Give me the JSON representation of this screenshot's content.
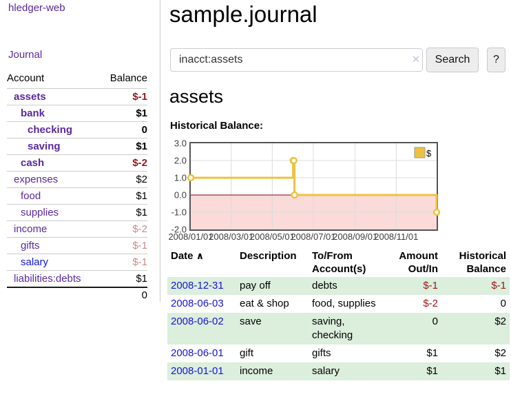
{
  "app": {
    "brand": "hledger-web"
  },
  "sidebar": {
    "journal_label": "Journal",
    "accounts": {
      "header_account": "Account",
      "header_balance": "Balance",
      "rows": [
        {
          "name": "assets",
          "depth": 1,
          "selected": true,
          "balance": "$-1",
          "negative": true
        },
        {
          "name": "bank",
          "depth": 2,
          "selected": true,
          "balance": "$1"
        },
        {
          "name": "checking",
          "depth": 3,
          "selected": true,
          "balance": "0"
        },
        {
          "name": "saving",
          "depth": 3,
          "selected": true,
          "balance": "$1"
        },
        {
          "name": "cash",
          "depth": 2,
          "selected": true,
          "balance": "$-2",
          "negative": true
        },
        {
          "name": "expenses",
          "depth": 1,
          "balance": "$2"
        },
        {
          "name": "food",
          "depth": 2,
          "balance": "$1"
        },
        {
          "name": "supplies",
          "depth": 2,
          "balance": "$1"
        },
        {
          "name": "income",
          "depth": 1,
          "balance": "$-2",
          "negative": true,
          "dimmed": true
        },
        {
          "name": "gifts",
          "depth": 2,
          "balance": "$-1",
          "negative": true,
          "dimmed": true
        },
        {
          "name": "salary",
          "depth": 2,
          "balance": "$-1",
          "negative": true,
          "dimmed": true,
          "link_state": "unvisited"
        },
        {
          "name": "liabilities:debts",
          "depth": 1,
          "balance": "$1"
        }
      ],
      "total": "0"
    }
  },
  "page": {
    "title": "sample.journal",
    "account_heading": "assets",
    "chart_label": "Historical Balance:"
  },
  "search": {
    "query": "inacct:assets",
    "button_label": "Search",
    "help_label": "?"
  },
  "icons": {
    "clear_search": "✕",
    "sort_ascending": "∧"
  },
  "chart_data": {
    "type": "line",
    "title": "Historical Balance",
    "step": true,
    "series": [
      {
        "name": "$",
        "color": "#edc240",
        "points": [
          {
            "x": "2008-01-01",
            "y": 1
          },
          {
            "x": "2008-06-01",
            "y": 2
          },
          {
            "x": "2008-06-02",
            "y": 2
          },
          {
            "x": "2008-06-03",
            "y": 0
          },
          {
            "x": "2008-12-31",
            "y": -1
          }
        ]
      }
    ],
    "xlim": [
      "2008-01-01",
      "2008-12-31"
    ],
    "ylim": [
      -2,
      3
    ],
    "yticks": [
      3.0,
      2.0,
      1.0,
      0.0,
      -1.0,
      -2.0
    ],
    "xticks": [
      {
        "x": "2008-01-01",
        "label": "2008/01/01"
      },
      {
        "x": "2008-03-01",
        "label": "2008/03/01"
      },
      {
        "x": "2008-05-01",
        "label": "2008/05/01"
      },
      {
        "x": "2008-07-01",
        "label": "2008/07/01"
      },
      {
        "x": "2008-09-01",
        "label": "2008/09/01"
      },
      {
        "x": "2008-11-01",
        "label": "2008/11/01"
      }
    ],
    "legend": {
      "label": "$",
      "position": "top-right"
    },
    "grid": true,
    "negative_region_shaded": true
  },
  "register": {
    "headers": {
      "date": "Date",
      "description": "Description",
      "accounts": "To/From Account(s)",
      "amount": "Amount Out/In",
      "balance": "Historical Balance"
    },
    "rows": [
      {
        "date": "2008-12-31",
        "description": "pay off",
        "accounts": "debts",
        "amount": "$-1",
        "amount_negative": true,
        "balance": "$-1",
        "balance_negative": true
      },
      {
        "date": "2008-06-03",
        "description": "eat & shop",
        "accounts": "food, supplies",
        "amount": "$-2",
        "amount_negative": true,
        "balance": "0"
      },
      {
        "date": "2008-06-02",
        "description": "save",
        "accounts": "saving, checking",
        "amount": "0",
        "balance": "$2"
      },
      {
        "date": "2008-06-01",
        "description": "gift",
        "accounts": "gifts",
        "amount": "$1",
        "balance": "$2"
      },
      {
        "date": "2008-01-01",
        "description": "income",
        "accounts": "salary",
        "amount": "$1",
        "balance": "$1"
      }
    ]
  },
  "colors": {
    "link_purple": "#5a27a0",
    "link_blue": "#1414dd",
    "negative_red": "#9b1616",
    "dimmed_negative_red": "#c98a8a",
    "row_stripe_green": "#dceedc",
    "chart_line_gold": "#edc240",
    "chart_negative_fill_pink": "#fbdada",
    "chart_zero_line_red": "#8b0000",
    "chart_border_gray": "#545454"
  }
}
